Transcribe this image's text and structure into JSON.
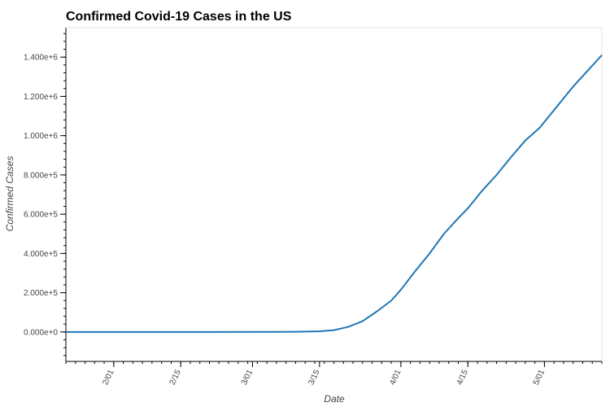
{
  "chart_data": {
    "type": "line",
    "title": "Confirmed Covid-19 Cases in the US",
    "xlabel": "Date",
    "ylabel": "Confirmed Cases",
    "xlim": [
      "2020-01-22",
      "2020-05-13"
    ],
    "ylim": [
      -150000,
      1550000
    ],
    "x_ticks": [
      {
        "date": "2020-02-01",
        "label": "2/01"
      },
      {
        "date": "2020-02-15",
        "label": "2/15"
      },
      {
        "date": "2020-03-01",
        "label": "3/01"
      },
      {
        "date": "2020-03-15",
        "label": "3/15"
      },
      {
        "date": "2020-04-01",
        "label": "4/01"
      },
      {
        "date": "2020-04-15",
        "label": "4/15"
      },
      {
        "date": "2020-05-01",
        "label": "5/01"
      }
    ],
    "y_ticks": [
      {
        "value": 0,
        "label": "0.000e+0"
      },
      {
        "value": 200000,
        "label": "2.000e+5"
      },
      {
        "value": 400000,
        "label": "4.000e+5"
      },
      {
        "value": 600000,
        "label": "6.000e+5"
      },
      {
        "value": 800000,
        "label": "8.000e+5"
      },
      {
        "value": 1000000,
        "label": "1.000e+6"
      },
      {
        "value": 1200000,
        "label": "1.200e+6"
      },
      {
        "value": 1400000,
        "label": "1.400e+6"
      }
    ],
    "grid": false,
    "series": [
      {
        "color": "#1f77b4",
        "points": [
          {
            "x": "2020-01-22",
            "y": 1
          },
          {
            "x": "2020-02-01",
            "y": 8
          },
          {
            "x": "2020-02-15",
            "y": 15
          },
          {
            "x": "2020-03-01",
            "y": 74
          },
          {
            "x": "2020-03-05",
            "y": 300
          },
          {
            "x": "2020-03-10",
            "y": 1000
          },
          {
            "x": "2020-03-15",
            "y": 3500
          },
          {
            "x": "2020-03-18",
            "y": 9000
          },
          {
            "x": "2020-03-21",
            "y": 26000
          },
          {
            "x": "2020-03-24",
            "y": 55000
          },
          {
            "x": "2020-03-27",
            "y": 105000
          },
          {
            "x": "2020-03-30",
            "y": 160000
          },
          {
            "x": "2020-04-01",
            "y": 215000
          },
          {
            "x": "2020-04-04",
            "y": 310000
          },
          {
            "x": "2020-04-07",
            "y": 400000
          },
          {
            "x": "2020-04-10",
            "y": 500000
          },
          {
            "x": "2020-04-13",
            "y": 580000
          },
          {
            "x": "2020-04-15",
            "y": 630000
          },
          {
            "x": "2020-04-18",
            "y": 720000
          },
          {
            "x": "2020-04-21",
            "y": 800000
          },
          {
            "x": "2020-04-24",
            "y": 890000
          },
          {
            "x": "2020-04-27",
            "y": 975000
          },
          {
            "x": "2020-04-30",
            "y": 1040000
          },
          {
            "x": "2020-05-01",
            "y": 1070000
          },
          {
            "x": "2020-05-04",
            "y": 1160000
          },
          {
            "x": "2020-05-07",
            "y": 1250000
          },
          {
            "x": "2020-05-10",
            "y": 1330000
          },
          {
            "x": "2020-05-13",
            "y": 1410000
          }
        ]
      }
    ]
  }
}
